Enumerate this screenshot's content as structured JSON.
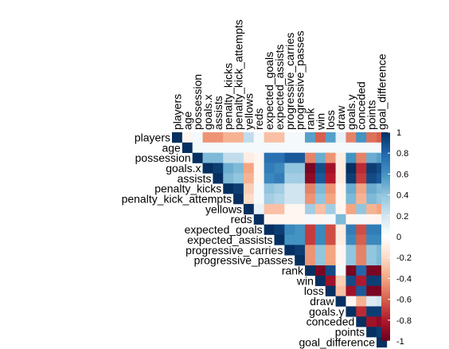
{
  "chart_data": {
    "type": "heatmap",
    "title": "",
    "variables": [
      "players",
      "age",
      "possession",
      "goals.x",
      "assists",
      "penalty_kicks",
      "penalty_kick_attempts",
      "yellows",
      "reds",
      "expected_goals",
      "expected_assists",
      "progressive_carries",
      "progressive_passes",
      "rank",
      "win",
      "loss",
      "draw",
      "goals.y",
      "conceded",
      "points",
      "goal_difference"
    ],
    "layout": "upper-triangle",
    "matrix": [
      [
        1,
        -0.05,
        0.05,
        -0.45,
        -0.45,
        -0.35,
        -0.35,
        0.25,
        0.05,
        -0.3,
        -0.3,
        0.05,
        0.05,
        0.55,
        -0.6,
        0.55,
        0.1,
        -0.5,
        0.6,
        -0.55,
        -0.6
      ],
      [
        null,
        1,
        0.05,
        0.05,
        0.05,
        0.05,
        0.05,
        0.05,
        0.05,
        0.05,
        0.05,
        0.05,
        0.05,
        0.05,
        0.05,
        0.05,
        0.05,
        0.05,
        0.05,
        0.05,
        0.05
      ],
      [
        null,
        null,
        1,
        0.45,
        0.45,
        0.25,
        0.25,
        -0.1,
        -0.05,
        0.75,
        0.75,
        0.85,
        0.85,
        -0.5,
        0.5,
        -0.45,
        -0.1,
        0.6,
        -0.5,
        0.5,
        0.55
      ],
      [
        null,
        null,
        null,
        1,
        0.95,
        0.5,
        0.45,
        -0.4,
        -0.05,
        0.7,
        0.65,
        0.4,
        0.4,
        -0.95,
        0.9,
        -0.85,
        -0.1,
        1,
        -0.75,
        0.95,
        0.9
      ],
      [
        null,
        null,
        null,
        null,
        1,
        0.45,
        0.4,
        -0.35,
        -0.05,
        0.65,
        0.7,
        0.35,
        0.35,
        -0.9,
        0.85,
        -0.8,
        -0.1,
        0.95,
        -0.7,
        0.9,
        0.85
      ],
      [
        null,
        null,
        null,
        null,
        null,
        1,
        0.95,
        -0.25,
        0.05,
        0.4,
        0.35,
        0.2,
        0.2,
        -0.5,
        0.45,
        -0.45,
        -0.05,
        0.5,
        -0.4,
        0.5,
        0.45
      ],
      [
        null,
        null,
        null,
        null,
        null,
        null,
        1,
        -0.2,
        0.05,
        0.35,
        0.3,
        0.2,
        0.2,
        -0.45,
        0.4,
        -0.4,
        -0.05,
        0.45,
        -0.35,
        0.45,
        0.4
      ],
      [
        null,
        null,
        null,
        null,
        null,
        null,
        null,
        1,
        0.1,
        -0.3,
        -0.3,
        -0.05,
        -0.05,
        0.35,
        -0.3,
        0.35,
        -0.05,
        -0.4,
        0.4,
        -0.35,
        -0.4
      ],
      [
        null,
        null,
        null,
        null,
        null,
        null,
        null,
        null,
        1,
        -0.05,
        -0.05,
        -0.05,
        -0.05,
        0.05,
        -0.05,
        0.05,
        0.45,
        -0.05,
        0.05,
        -0.05,
        -0.05
      ],
      [
        null,
        null,
        null,
        null,
        null,
        null,
        null,
        null,
        null,
        1,
        0.95,
        0.65,
        0.6,
        -0.7,
        0.65,
        -0.65,
        -0.1,
        0.7,
        -0.65,
        0.7,
        0.7
      ],
      [
        null,
        null,
        null,
        null,
        null,
        null,
        null,
        null,
        null,
        null,
        1,
        0.6,
        0.6,
        -0.7,
        0.65,
        -0.65,
        -0.1,
        0.65,
        -0.6,
        0.65,
        0.65
      ],
      [
        null,
        null,
        null,
        null,
        null,
        null,
        null,
        null,
        null,
        null,
        null,
        1,
        0.95,
        -0.45,
        0.4,
        -0.4,
        -0.05,
        0.4,
        -0.5,
        0.4,
        0.45
      ],
      [
        null,
        null,
        null,
        null,
        null,
        null,
        null,
        null,
        null,
        null,
        null,
        null,
        1,
        -0.45,
        0.4,
        -0.4,
        -0.05,
        0.4,
        -0.5,
        0.4,
        0.45
      ],
      [
        null,
        null,
        null,
        null,
        null,
        null,
        null,
        null,
        null,
        null,
        null,
        null,
        null,
        1,
        -0.95,
        0.9,
        0.05,
        -0.95,
        0.8,
        -0.95,
        -0.95
      ],
      [
        null,
        null,
        null,
        null,
        null,
        null,
        null,
        null,
        null,
        null,
        null,
        null,
        null,
        null,
        1,
        -0.85,
        -0.25,
        0.9,
        -0.8,
        0.95,
        0.95
      ],
      [
        null,
        null,
        null,
        null,
        null,
        null,
        null,
        null,
        null,
        null,
        null,
        null,
        null,
        null,
        null,
        1,
        -0.3,
        -0.85,
        0.85,
        -0.95,
        -0.95
      ],
      [
        null,
        null,
        null,
        null,
        null,
        null,
        null,
        null,
        null,
        null,
        null,
        null,
        null,
        null,
        null,
        null,
        1,
        -0.05,
        -0.35,
        0.15,
        0.2
      ],
      [
        null,
        null,
        null,
        null,
        null,
        null,
        null,
        null,
        null,
        null,
        null,
        null,
        null,
        null,
        null,
        null,
        null,
        1,
        -0.75,
        0.95,
        0.95
      ],
      [
        null,
        null,
        null,
        null,
        null,
        null,
        null,
        null,
        null,
        null,
        null,
        null,
        null,
        null,
        null,
        null,
        null,
        null,
        1,
        -0.85,
        -0.9
      ],
      [
        null,
        null,
        null,
        null,
        null,
        null,
        null,
        null,
        null,
        null,
        null,
        null,
        null,
        null,
        null,
        null,
        null,
        null,
        null,
        1,
        0.95
      ],
      [
        null,
        null,
        null,
        null,
        null,
        null,
        null,
        null,
        null,
        null,
        null,
        null,
        null,
        null,
        null,
        null,
        null,
        null,
        null,
        null,
        1
      ]
    ],
    "colorbar": {
      "range": [
        -1,
        1
      ],
      "ticks": [
        "1",
        "0.8",
        "0.6",
        "0.4",
        "0.2",
        "0",
        "-0.2",
        "-0.4",
        "-0.6",
        "-0.8",
        "-1"
      ],
      "colors": [
        "#67001F",
        "#B2182B",
        "#D6604D",
        "#F4A582",
        "#FDDBC7",
        "#FFFFFF",
        "#D1E5F0",
        "#92C5DE",
        "#4393C3",
        "#2166AC",
        "#053061"
      ]
    }
  }
}
